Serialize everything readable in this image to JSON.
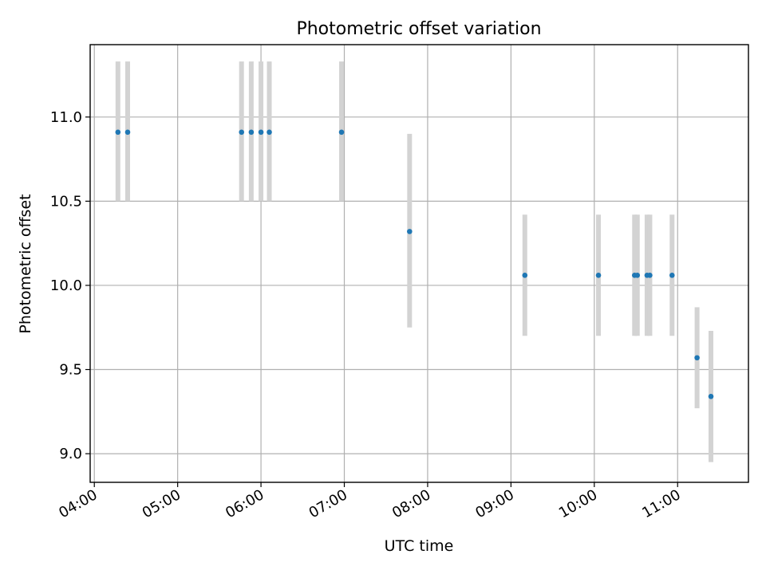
{
  "chart_data": {
    "type": "scatter",
    "title": "Photometric offset variation",
    "xlabel": "UTC time",
    "ylabel": "Photometric offset",
    "x_type": "time",
    "xlim": [
      "03:57",
      "11:51"
    ],
    "ylim": [
      8.83,
      11.43
    ],
    "x_ticks": [
      "04:00",
      "05:00",
      "06:00",
      "07:00",
      "08:00",
      "09:00",
      "10:00",
      "11:00"
    ],
    "y_ticks": [
      "9.0",
      "9.5",
      "10.0",
      "10.5",
      "11.0"
    ],
    "grid": true,
    "errorbar_color": "#d3d3d3",
    "marker_color": "#1f77b4",
    "points": [
      {
        "x": "04:17",
        "y": 10.91,
        "err_low": 10.5,
        "err_high": 11.33
      },
      {
        "x": "04:24",
        "y": 10.91,
        "err_low": 10.5,
        "err_high": 11.33
      },
      {
        "x": "05:46",
        "y": 10.91,
        "err_low": 10.5,
        "err_high": 11.33
      },
      {
        "x": "05:53",
        "y": 10.91,
        "err_low": 10.5,
        "err_high": 11.33
      },
      {
        "x": "06:00",
        "y": 10.91,
        "err_low": 10.5,
        "err_high": 11.33
      },
      {
        "x": "06:06",
        "y": 10.91,
        "err_low": 10.5,
        "err_high": 11.33
      },
      {
        "x": "06:58",
        "y": 10.91,
        "err_low": 10.5,
        "err_high": 11.33
      },
      {
        "x": "07:47",
        "y": 10.32,
        "err_low": 9.75,
        "err_high": 10.9
      },
      {
        "x": "09:10",
        "y": 10.06,
        "err_low": 9.7,
        "err_high": 10.42
      },
      {
        "x": "10:03",
        "y": 10.06,
        "err_low": 9.7,
        "err_high": 10.42
      },
      {
        "x": "10:29",
        "y": 10.06,
        "err_low": 9.7,
        "err_high": 10.42
      },
      {
        "x": "10:31",
        "y": 10.06,
        "err_low": 9.7,
        "err_high": 10.42
      },
      {
        "x": "10:38",
        "y": 10.06,
        "err_low": 9.7,
        "err_high": 10.42
      },
      {
        "x": "10:40",
        "y": 10.06,
        "err_low": 9.7,
        "err_high": 10.42
      },
      {
        "x": "10:56",
        "y": 10.06,
        "err_low": 9.7,
        "err_high": 10.42
      },
      {
        "x": "11:14",
        "y": 9.57,
        "err_low": 9.27,
        "err_high": 9.87
      },
      {
        "x": "11:24",
        "y": 9.34,
        "err_low": 8.95,
        "err_high": 9.73
      }
    ]
  }
}
